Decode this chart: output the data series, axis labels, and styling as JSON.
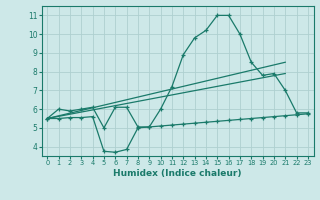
{
  "xlabel": "Humidex (Indice chaleur)",
  "background_color": "#cde8e8",
  "grid_color": "#aed0d0",
  "line_color": "#1a7a6a",
  "xlim": [
    -0.5,
    23.5
  ],
  "ylim": [
    3.5,
    11.5
  ],
  "xticks": [
    0,
    1,
    2,
    3,
    4,
    5,
    6,
    7,
    8,
    9,
    10,
    11,
    12,
    13,
    14,
    15,
    16,
    17,
    18,
    19,
    20,
    21,
    22,
    23
  ],
  "yticks": [
    4,
    5,
    6,
    7,
    8,
    9,
    10,
    11
  ],
  "line1_x": [
    0,
    1,
    2,
    3,
    4,
    5,
    6,
    7,
    8,
    9,
    10,
    11,
    12,
    13,
    14,
    15,
    16,
    17,
    18,
    19,
    20,
    21,
    22,
    23
  ],
  "line1_y": [
    5.5,
    6.0,
    5.9,
    6.0,
    6.1,
    5.0,
    6.1,
    6.1,
    5.05,
    5.05,
    6.0,
    7.2,
    8.9,
    9.8,
    10.2,
    11.0,
    11.0,
    10.0,
    8.5,
    7.8,
    7.9,
    7.0,
    5.8,
    5.8
  ],
  "line2_x": [
    0,
    21
  ],
  "line2_y": [
    5.5,
    7.9
  ],
  "line3_x": [
    0,
    21
  ],
  "line3_y": [
    5.5,
    8.5
  ],
  "line4_x": [
    0,
    1,
    2,
    3,
    4,
    5,
    6,
    7,
    8,
    9,
    10,
    11,
    12,
    13,
    14,
    15,
    16,
    17,
    18,
    19,
    20,
    21,
    22,
    23
  ],
  "line4_y": [
    5.5,
    5.5,
    5.55,
    5.55,
    5.6,
    3.75,
    3.7,
    3.85,
    5.0,
    5.05,
    5.1,
    5.15,
    5.2,
    5.25,
    5.3,
    5.35,
    5.4,
    5.45,
    5.5,
    5.55,
    5.6,
    5.65,
    5.7,
    5.75
  ]
}
